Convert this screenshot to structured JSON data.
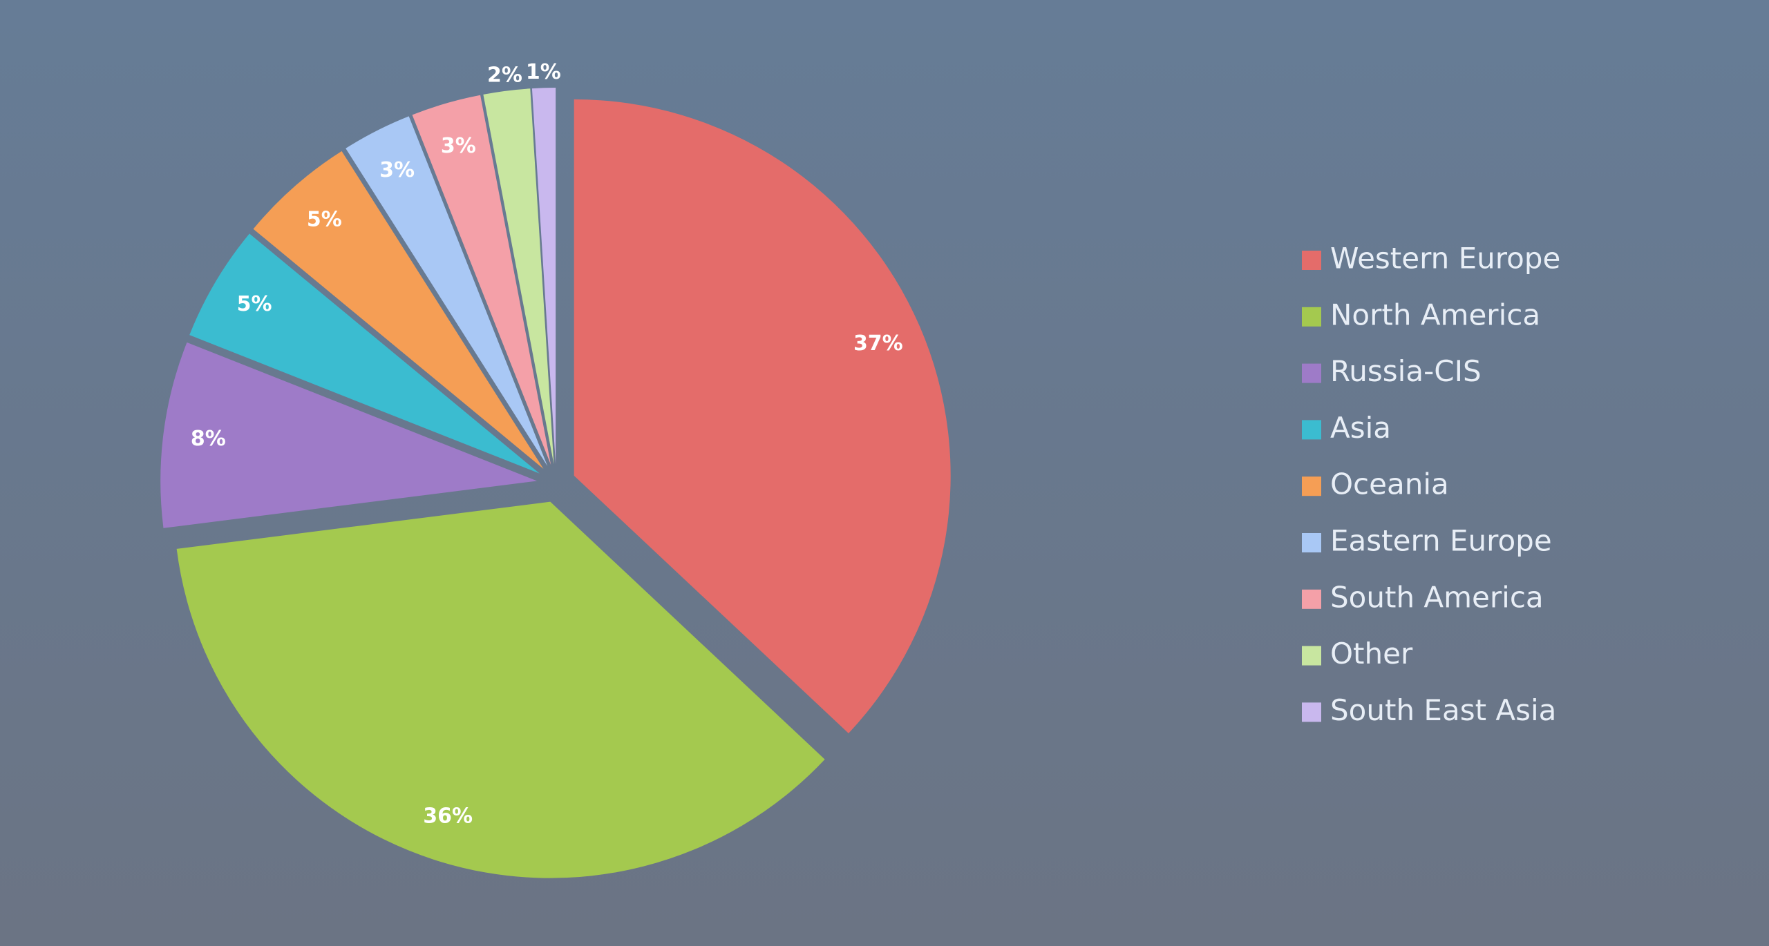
{
  "chart_data": {
    "type": "pie",
    "categories": [
      "Western Europe",
      "North America",
      "Russia-CIS",
      "Asia",
      "Oceania",
      "Eastern Europe",
      "South America",
      "Other",
      "South East Asia"
    ],
    "values": [
      37,
      36,
      8,
      5,
      5,
      3,
      3,
      2,
      1
    ],
    "value_labels": [
      "37%",
      "36%",
      "8%",
      "5%",
      "5%",
      "3%",
      "3%",
      "2%",
      "1%"
    ],
    "colors": [
      "#e46c6a",
      "#a4c94f",
      "#9e7bc8",
      "#3bbcd0",
      "#f59e55",
      "#a9c8f5",
      "#f4a0a8",
      "#c8e6a0",
      "#c9b8ee"
    ],
    "legend": "right"
  }
}
